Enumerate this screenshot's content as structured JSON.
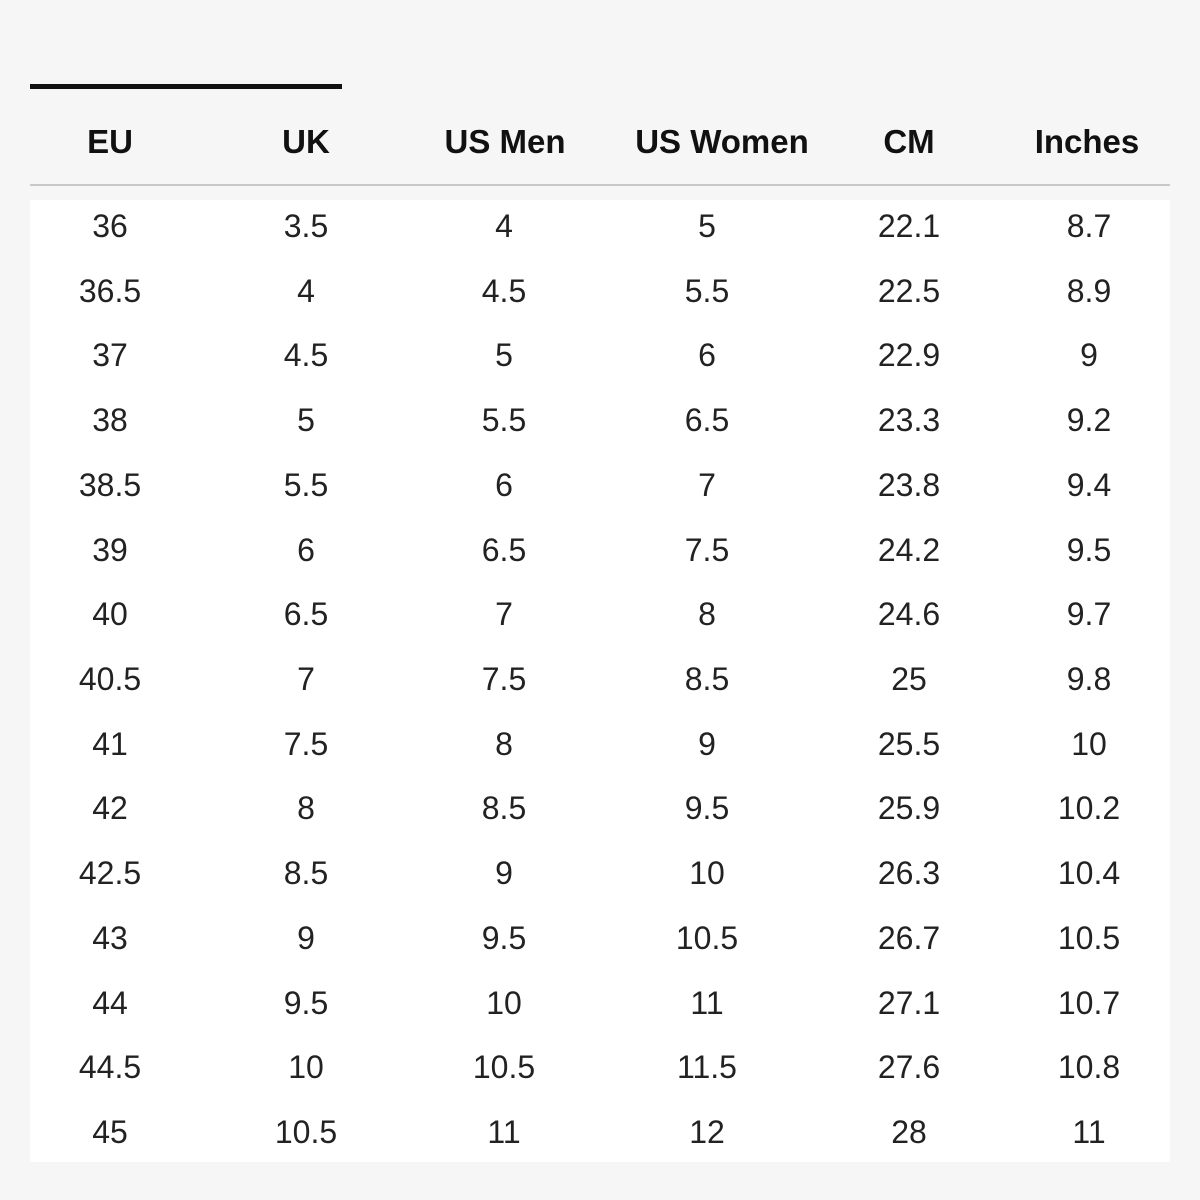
{
  "table": {
    "header": [
      "EU",
      "UK",
      "US Men",
      "US Women",
      "CM",
      "Inches"
    ],
    "rows": [
      [
        "36",
        "3.5",
        "4",
        "5",
        "22.1",
        "8.7"
      ],
      [
        "36.5",
        "4",
        "4.5",
        "5.5",
        "22.5",
        "8.9"
      ],
      [
        "37",
        "4.5",
        "5",
        "6",
        "22.9",
        "9"
      ],
      [
        "38",
        "5",
        "5.5",
        "6.5",
        "23.3",
        "9.2"
      ],
      [
        "38.5",
        "5.5",
        "6",
        "7",
        "23.8",
        "9.4"
      ],
      [
        "39",
        "6",
        "6.5",
        "7.5",
        "24.2",
        "9.5"
      ],
      [
        "40",
        "6.5",
        "7",
        "8",
        "24.6",
        "9.7"
      ],
      [
        "40.5",
        "7",
        "7.5",
        "8.5",
        "25",
        "9.8"
      ],
      [
        "41",
        "7.5",
        "8",
        "9",
        "25.5",
        "10"
      ],
      [
        "42",
        "8",
        "8.5",
        "9.5",
        "25.9",
        "10.2"
      ],
      [
        "42.5",
        "8.5",
        "9",
        "10",
        "26.3",
        "10.4"
      ],
      [
        "43",
        "9",
        "9.5",
        "10.5",
        "26.7",
        "10.5"
      ],
      [
        "44",
        "9.5",
        "10",
        "11",
        "27.1",
        "10.7"
      ],
      [
        "44.5",
        "10",
        "10.5",
        "11.5",
        "27.6",
        "10.8"
      ],
      [
        "45",
        "10.5",
        "11",
        "12",
        "28",
        "11"
      ]
    ]
  }
}
